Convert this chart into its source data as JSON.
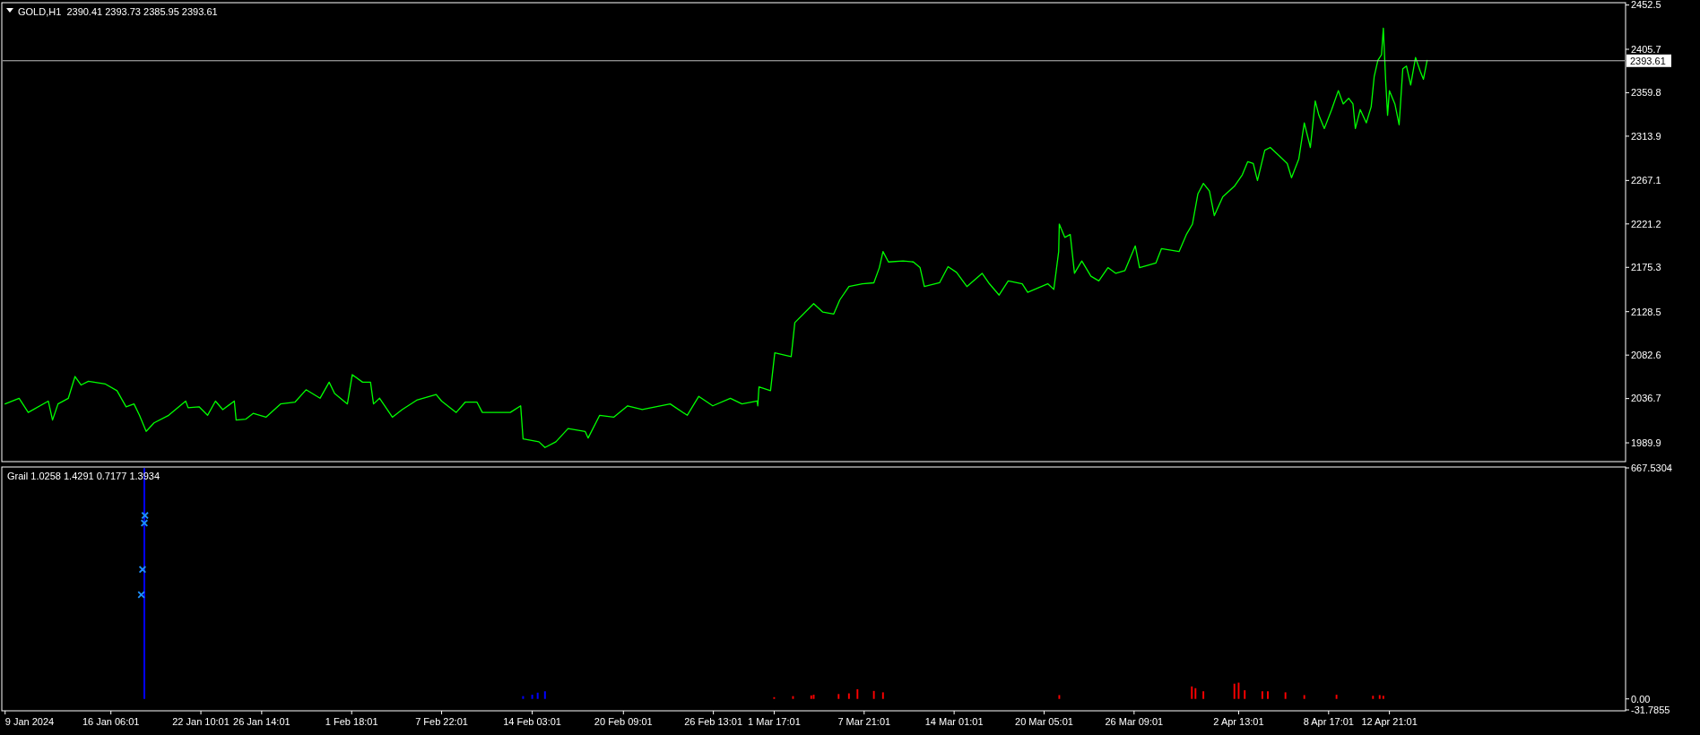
{
  "chart_data": [
    {
      "type": "line",
      "title": "GOLD,H1  2390.41 2393.73 2385.95 2393.61",
      "xlim": [
        "2024-01-08T20:00",
        "2024-04-29T00:00"
      ],
      "ylim": [
        1971,
        2454
      ],
      "yticks": [
        1989.9,
        2036.7,
        2082.6,
        2128.5,
        2175.3,
        2221.2,
        2267.1,
        2313.9,
        2359.8,
        2405.7,
        2452.5
      ],
      "tick_labels": "y",
      "grid": false,
      "ref_lines": [
        {
          "axis": "y",
          "value": 2393.61,
          "label": "2393.61",
          "color": "#c0c0c0"
        }
      ],
      "series": [
        {
          "color": "#00ff00",
          "x": [
            "2024-01-09T00:00",
            "2024-01-09T23:00",
            "2024-01-10T14:00",
            "2024-01-11T23:00",
            "2024-01-12T06:00",
            "2024-01-12T15:00",
            "2024-01-13T08:00",
            "2024-01-13T19:00",
            "2024-01-14T05:00",
            "2024-01-14T17:00",
            "2024-01-15T21:00",
            "2024-01-16T16:00",
            "2024-01-17T07:00",
            "2024-01-17T20:00",
            "2024-01-18T05:00",
            "2024-01-18T16:00",
            "2024-01-19T05:00",
            "2024-01-20T05:00",
            "2024-01-21T09:00",
            "2024-01-21T13:00",
            "2024-01-22T07:00",
            "2024-01-22T21:00",
            "2024-01-23T10:00",
            "2024-01-23T22:00",
            "2024-01-24T17:00",
            "2024-01-24T20:00",
            "2024-01-25T12:00",
            "2024-01-26T00:00",
            "2024-01-26T21:00",
            "2024-01-27T21:00",
            "2024-01-28T21:00",
            "2024-01-29T15:00",
            "2024-01-30T14:00",
            "2024-01-31T05:00",
            "2024-01-31T14:00",
            "2024-02-01T11:00",
            "2024-02-01T19:00",
            "2024-02-02T12:00",
            "2024-02-03T01:00",
            "2024-02-03T06:00",
            "2024-02-03T16:00",
            "2024-02-04T13:00",
            "2024-02-05T05:00",
            "2024-02-06T05:00",
            "2024-02-07T13:00",
            "2024-02-07T22:00",
            "2024-02-08T22:00",
            "2024-02-09T13:00",
            "2024-02-10T08:00",
            "2024-02-10T17:00",
            "2024-02-11T20:00",
            "2024-02-12T15:00",
            "2024-02-13T08:00",
            "2024-02-13T12:00",
            "2024-02-14T14:00",
            "2024-02-15T00:00",
            "2024-02-15T18:00",
            "2024-02-16T14:00",
            "2024-02-17T18:00",
            "2024-02-17T23:00",
            "2024-02-18T18:00",
            "2024-02-19T17:00",
            "2024-02-20T16:00",
            "2024-02-21T16:00",
            "2024-02-22T14:00",
            "2024-02-23T14:00",
            "2024-02-24T18:00",
            "2024-02-25T13:00",
            "2024-02-26T12:00",
            "2024-02-27T17:00",
            "2024-02-28T12:00",
            "2024-02-29T13:00",
            "2024-02-29T14:00",
            "2024-02-29T16:00",
            "2024-03-01T11:00",
            "2024-03-01T18:00",
            "2024-03-02T21:00",
            "2024-03-03T03:00",
            "2024-03-04T10:00",
            "2024-03-05T01:00",
            "2024-03-05T19:00",
            "2024-03-06T05:00",
            "2024-03-06T20:00",
            "2024-03-07T18:00",
            "2024-03-08T13:00",
            "2024-03-08T22:00",
            "2024-03-09T04:00",
            "2024-03-09T13:00",
            "2024-03-10T13:00",
            "2024-03-11T06:00",
            "2024-03-11T17:00",
            "2024-03-12T00:00",
            "2024-03-13T01:00",
            "2024-03-13T15:00",
            "2024-03-14T05:00",
            "2024-03-14T22:00",
            "2024-03-15T23:00",
            "2024-03-16T11:00",
            "2024-03-17T03:00",
            "2024-03-17T18:00",
            "2024-03-18T17:00",
            "2024-03-19T02:00",
            "2024-03-20T11:00",
            "2024-03-20T21:00",
            "2024-03-21T05:00",
            "2024-03-21T06:00",
            "2024-03-21T15:00",
            "2024-03-22T00:00",
            "2024-03-22T07:00",
            "2024-03-22T19:00",
            "2024-03-23T10:00",
            "2024-03-23T23:00",
            "2024-03-24T14:00",
            "2024-03-25T03:00",
            "2024-03-25T18:00",
            "2024-03-26T11:00",
            "2024-03-26T18:00",
            "2024-03-27T21:00",
            "2024-03-28T06:00",
            "2024-03-29T11:00",
            "2024-03-29T23:00",
            "2024-03-30T09:00",
            "2024-03-30T18:00",
            "2024-03-31T03:00",
            "2024-03-31T13:00",
            "2024-03-31T21:00",
            "2024-04-01T11:00",
            "2024-04-02T06:00",
            "2024-04-02T19:00",
            "2024-04-03T04:00",
            "2024-04-03T13:00",
            "2024-04-03T20:00",
            "2024-04-04T08:00",
            "2024-04-04T17:00",
            "2024-04-05T08:00",
            "2024-04-05T21:00",
            "2024-04-06T04:00",
            "2024-04-06T16:00",
            "2024-04-07T01:00",
            "2024-04-07T11:00",
            "2024-04-07T19:00",
            "2024-04-08T01:00",
            "2024-04-08T10:00",
            "2024-04-08T22:00",
            "2024-04-09T09:00",
            "2024-04-09T17:00",
            "2024-04-10T02:00",
            "2024-04-10T09:00",
            "2024-04-10T13:00",
            "2024-04-10T21:00",
            "2024-04-11T07:00",
            "2024-04-11T15:00",
            "2024-04-11T20:00",
            "2024-04-12T02:00",
            "2024-04-12T08:00",
            "2024-04-12T11:00",
            "2024-04-12T15:00",
            "2024-04-12T18:00",
            "2024-04-12T21:00",
            "2024-04-13T06:00",
            "2024-04-13T13:00",
            "2024-04-13T19:00",
            "2024-04-14T01:00",
            "2024-04-14T08:00",
            "2024-04-14T16:00",
            "2024-04-15T00:00",
            "2024-04-15T05:00",
            "2024-04-15T11:00"
          ],
          "values": [
            2031,
            2037,
            2022,
            2034,
            2014,
            2031,
            2037,
            2060,
            2051,
            2055,
            2052,
            2045,
            2028,
            2031,
            2019,
            2002,
            2011,
            2019,
            2034,
            2027,
            2028,
            2019,
            2034,
            2025,
            2034,
            2014,
            2015,
            2021,
            2017,
            2031,
            2033,
            2046,
            2037,
            2054,
            2042,
            2031,
            2062,
            2054,
            2054,
            2031,
            2037,
            2017,
            2025,
            2035,
            2041,
            2034,
            2022,
            2033,
            2033,
            2022,
            2022,
            2022,
            2029,
            1994,
            1991,
            1985,
            1991,
            2005,
            2002,
            1995,
            2019,
            2017,
            2029,
            2025,
            2028,
            2031,
            2019,
            2039,
            2029,
            2037,
            2031,
            2034,
            2029,
            2049,
            2045,
            2085,
            2081,
            2117,
            2137,
            2128,
            2126,
            2141,
            2155,
            2158,
            2159,
            2175,
            2192,
            2181,
            2182,
            2181,
            2175,
            2155,
            2159,
            2176,
            2170,
            2155,
            2169,
            2158,
            2146,
            2161,
            2158,
            2149,
            2158,
            2152,
            2192,
            2221,
            2207,
            2210,
            2169,
            2182,
            2166,
            2161,
            2175,
            2169,
            2172,
            2198,
            2175,
            2180,
            2195,
            2192,
            2210,
            2221,
            2253,
            2264,
            2256,
            2230,
            2250,
            2261,
            2273,
            2287,
            2285,
            2267,
            2299,
            2302,
            2293,
            2285,
            2270,
            2290,
            2328,
            2302,
            2351,
            2336,
            2322,
            2342,
            2362,
            2348,
            2354,
            2348,
            2322,
            2342,
            2328,
            2345,
            2377,
            2394,
            2400,
            2428,
            2371,
            2336,
            2362,
            2348,
            2326,
            2385,
            2388,
            2368,
            2397,
            2382,
            2374,
            2394
          ]
        }
      ]
    },
    {
      "type": "bar",
      "title": "Grail 1.0258 1.4291 0.7177 1.3934",
      "xlim": [
        "2024-01-08T20:00",
        "2024-04-29T00:00"
      ],
      "ylim": [
        -31.7855,
        667.5304
      ],
      "yticks": [
        {
          "value": 667.5304,
          "label": "667.5304"
        },
        {
          "value": 0,
          "label": "0.00"
        },
        {
          "value": -31.7855,
          "label": "-31.7855"
        }
      ],
      "xticks": [
        {
          "value": "2024-01-09",
          "label": "9 Jan 2024"
        },
        {
          "value": "2024-01-16T06:01",
          "label": "16 Jan 06:01"
        },
        {
          "value": "2024-01-22T10:01",
          "label": "22 Jan 10:01"
        },
        {
          "value": "2024-01-26T14:01",
          "label": "26 Jan 14:01"
        },
        {
          "value": "2024-02-01T18:01",
          "label": "1 Feb 18:01"
        },
        {
          "value": "2024-02-07T22:01",
          "label": "7 Feb 22:01"
        },
        {
          "value": "2024-02-14T03:01",
          "label": "14 Feb 03:01"
        },
        {
          "value": "2024-02-20T09:01",
          "label": "20 Feb 09:01"
        },
        {
          "value": "2024-02-26T13:01",
          "label": "26 Feb 13:01"
        },
        {
          "value": "2024-03-01T17:01",
          "label": "1 Mar 17:01"
        },
        {
          "value": "2024-03-07T21:01",
          "label": "7 Mar 21:01"
        },
        {
          "value": "2024-03-14T01:01",
          "label": "14 Mar 01:01"
        },
        {
          "value": "2024-03-20T05:01",
          "label": "20 Mar 05:01"
        },
        {
          "value": "2024-03-26T09:01",
          "label": "26 Mar 09:01"
        },
        {
          "value": "2024-04-02T13:01",
          "label": "2 Apr 13:01"
        },
        {
          "value": "2024-04-08T17:01",
          "label": "8 Apr 17:01"
        },
        {
          "value": "2024-04-12T21:01",
          "label": "12 Apr 21:01"
        }
      ],
      "grid": false,
      "series": [
        {
          "color": "#0000ff",
          "x": [
            "2024-01-18T13:00",
            "2024-02-13T12:00",
            "2024-02-14T03:00",
            "2024-02-14T12:00",
            "2024-02-15T00:00"
          ],
          "values": [
            667,
            8,
            12,
            18,
            22
          ]
        },
        {
          "color": "#ff0000",
          "x": [
            "2024-03-01T17:00",
            "2024-03-03T00:00",
            "2024-03-04T06:00",
            "2024-03-04T10:00",
            "2024-03-06T03:00",
            "2024-03-06T20:00",
            "2024-03-07T10:00",
            "2024-03-08T13:00",
            "2024-03-09T04:00",
            "2024-03-21T06:00",
            "2024-03-30T08:00",
            "2024-03-30T14:00",
            "2024-03-31T03:00",
            "2024-04-02T06:00",
            "2024-04-02T13:00",
            "2024-04-02T23:00",
            "2024-04-04T04:00",
            "2024-04-04T13:00",
            "2024-04-05T18:00",
            "2024-04-07T01:00",
            "2024-04-09T06:00",
            "2024-04-11T18:00",
            "2024-04-12T05:00",
            "2024-04-12T11:00"
          ],
          "values": [
            5,
            8,
            10,
            12,
            14,
            16,
            28,
            23,
            19,
            11,
            36,
            31,
            22,
            44,
            47,
            25,
            22,
            22,
            19,
            11,
            12,
            9,
            11,
            9
          ]
        },
        {
          "type": "scatter",
          "marker": "cross",
          "color": "#1e90ff",
          "x": [
            "2024-01-18T08:00",
            "2024-01-18T10:00",
            "2024-01-18T13:00",
            "2024-01-18T14:00"
          ],
          "values": [
            301,
            374,
            508,
            530
          ]
        }
      ]
    }
  ]
}
